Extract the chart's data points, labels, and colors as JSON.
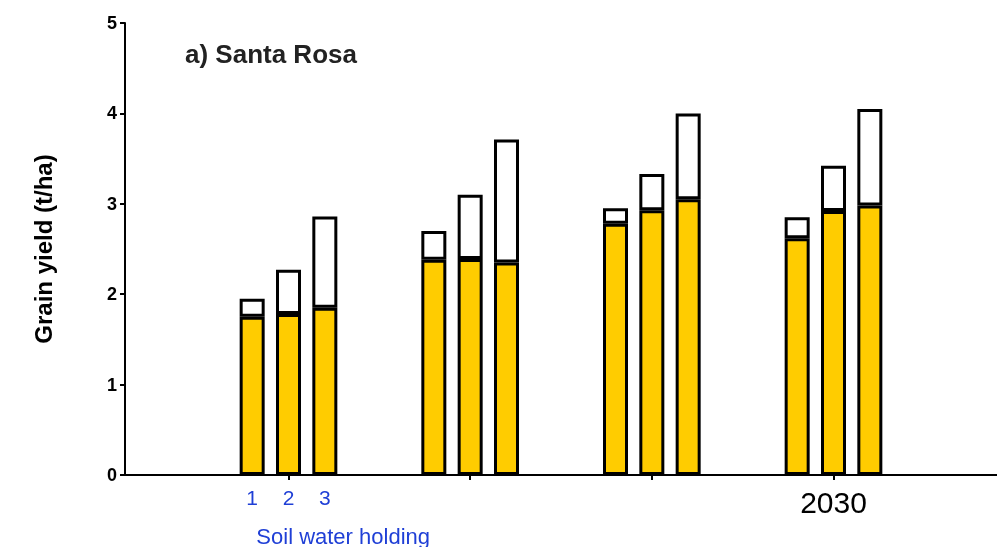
{
  "chart_data": {
    "type": "bar",
    "title": "a) Santa Rosa",
    "xlabel": "Soil water holding",
    "ylabel": "Grain yield (t/ha)",
    "categories": [
      null,
      null,
      null,
      "1",
      "2",
      "3",
      null,
      null,
      null,
      null,
      null,
      null,
      null,
      null,
      null,
      null,
      null,
      null,
      null,
      "2030",
      null,
      null,
      null,
      null
    ],
    "stacked": true,
    "series": [
      {
        "color": "#ffcc00",
        "values": [
          null,
          null,
          null,
          1.75,
          1.78,
          1.85,
          null,
          null,
          2.38,
          2.39,
          2.35,
          null,
          null,
          2.78,
          2.93,
          3.05,
          null,
          null,
          2.62,
          2.92,
          2.98,
          null,
          null,
          null
        ]
      },
      {
        "color": "#ffffff",
        "values": [
          null,
          null,
          null,
          0.2,
          0.49,
          1.01,
          null,
          null,
          0.32,
          0.71,
          1.36,
          null,
          null,
          0.17,
          0.4,
          0.95,
          null,
          null,
          0.23,
          0.5,
          1.07,
          null,
          null,
          null
        ]
      }
    ],
    "ylim": [
      0,
      5
    ],
    "yticks": [
      0,
      1,
      2,
      3,
      4,
      5
    ],
    "grid": false
  }
}
